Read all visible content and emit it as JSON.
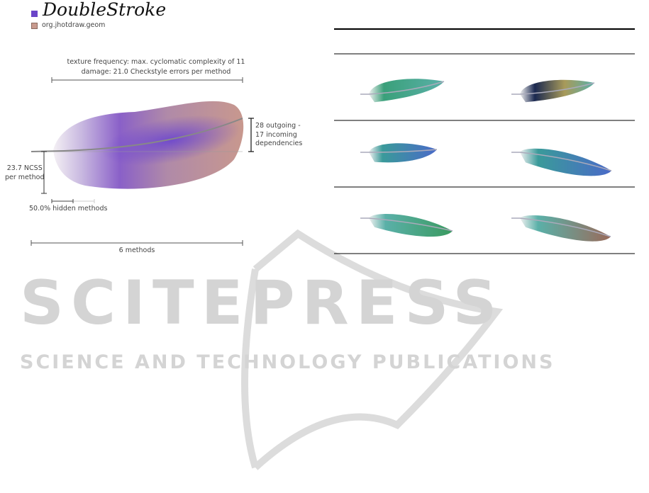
{
  "figure_left": {
    "title": "DoubleStroke",
    "legend": [
      {
        "label": "DoubleStroke",
        "color": "#6a44c8"
      },
      {
        "label": "org.jhotdraw.geom",
        "color": "#c89a8e"
      }
    ],
    "texture_label": "texture frequency: max. cyclomatic complexity of 11",
    "damage_label": "damage: 21.0 Checkstyle errors per method",
    "dependencies_label": [
      "28 outgoing -",
      "17 incoming",
      "dependencies"
    ],
    "ncss_label": [
      "23.7 NCSS",
      "per method"
    ],
    "hidden_label": "50.0% hidden methods",
    "hidden_fraction": 0.5,
    "methods_label": "6 methods"
  },
  "figure_right": {
    "rows": [
      {
        "feathers": [
          {
            "colors": [
              "#3aa07a",
              "#5ab0a8"
            ]
          },
          {
            "colors": [
              "#1a2850",
              "#a89a5a",
              "#5ab0a8"
            ]
          }
        ]
      },
      {
        "feathers": [
          {
            "colors": [
              "#3a9a9a",
              "#4a6ac8"
            ]
          },
          {
            "colors": [
              "#3a9a9a",
              "#4a6ac8"
            ]
          }
        ]
      },
      {
        "feathers": [
          {
            "colors": [
              "#5ab0a8",
              "#3a9a60"
            ]
          },
          {
            "colors": [
              "#5ab0a8",
              "#9a6a5a"
            ]
          }
        ]
      }
    ]
  },
  "watermark": {
    "line1": "SCITEPRESS",
    "line2": "SCIENCE AND TECHNOLOGY PUBLICATIONS"
  }
}
